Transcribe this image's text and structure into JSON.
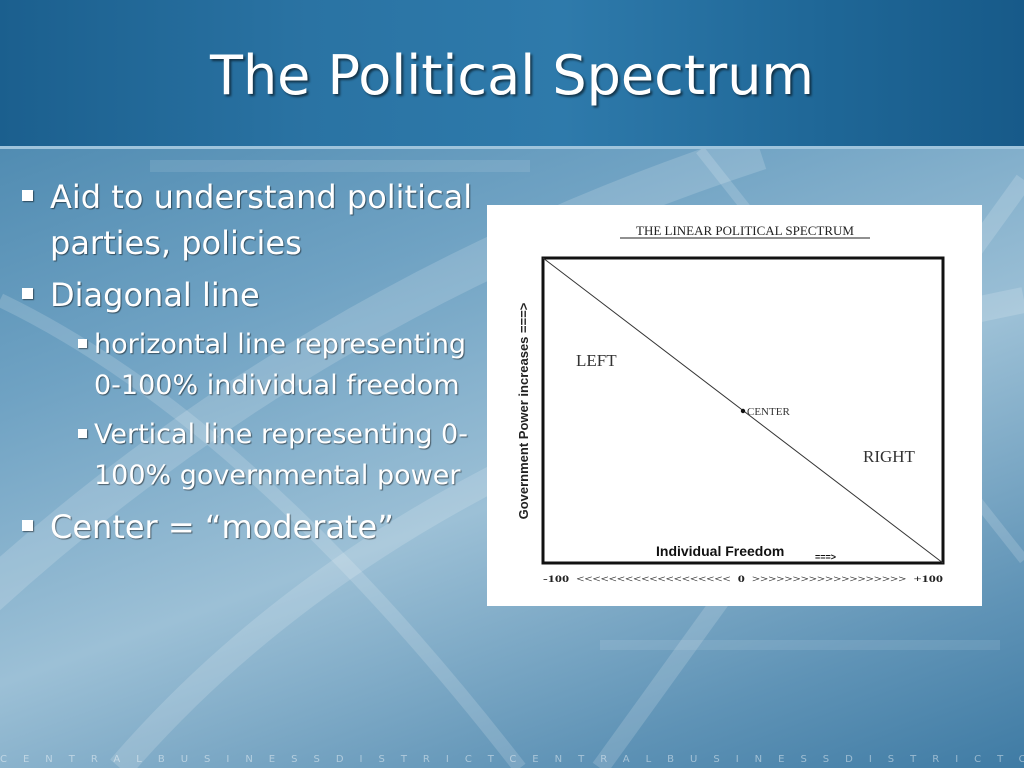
{
  "slide": {
    "title": "The Political Spectrum",
    "bullets": [
      {
        "level": 1,
        "text": "Aid to understand political parties, policies"
      },
      {
        "level": 1,
        "text": "Diagonal line"
      },
      {
        "level": 2,
        "text": "horizontal line representing 0-100% individual freedom"
      },
      {
        "level": 2,
        "text": "Vertical line representing 0-100% governmental power"
      },
      {
        "level": 1,
        "text": "Center = “moderate”"
      }
    ],
    "footer_text": "CENTRALBUSINESSDISTRICTCENTRALBUSINESSDISTRICTCENTRA"
  },
  "figure": {
    "title": "THE LINEAR POLITICAL SPECTRUM",
    "y_axis_label": "Government Power increases ===>",
    "x_axis_label": "Individual Freedom",
    "x_axis_arrow": "===>",
    "left_label": "LEFT",
    "right_label": "RIGHT",
    "center_label": "CENTER",
    "scale_text": "-100  <<<<<<<<<<<<<<<<<<<  0  >>>>>>>>>>>>>>>>>>>  +100"
  },
  "colors": {
    "title_band": "#2a73a3",
    "background": "#6fa2c3",
    "text": "#ffffff"
  }
}
